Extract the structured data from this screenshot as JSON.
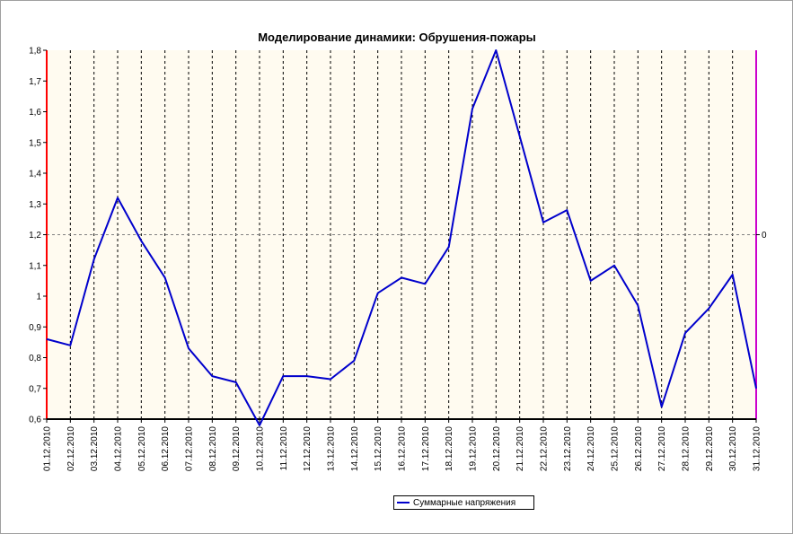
{
  "chart_data": {
    "type": "line",
    "title": "Моделирование динамики: Обрушения-пожары",
    "x": [
      "01.12.2010",
      "02.12.2010",
      "03.12.2010",
      "04.12.2010",
      "05.12.2010",
      "06.12.2010",
      "07.12.2010",
      "08.12.2010",
      "09.12.2010",
      "10.12.2010",
      "11.12.2010",
      "12.12.2010",
      "13.12.2010",
      "14.12.2010",
      "15.12.2010",
      "16.12.2010",
      "17.12.2010",
      "18.12.2010",
      "19.12.2010",
      "20.12.2010",
      "21.12.2010",
      "22.12.2010",
      "23.12.2010",
      "24.12.2010",
      "25.12.2010",
      "26.12.2010",
      "27.12.2010",
      "28.12.2010",
      "29.12.2010",
      "30.12.2010",
      "31.12.2010"
    ],
    "series": [
      {
        "name": "Суммарные напряжения",
        "color": "#0000cc",
        "values": [
          0.86,
          0.84,
          1.12,
          1.32,
          1.18,
          1.06,
          0.83,
          0.74,
          0.72,
          0.58,
          0.74,
          0.74,
          0.73,
          0.79,
          1.01,
          1.06,
          1.04,
          1.16,
          1.61,
          1.8,
          1.52,
          1.24,
          1.28,
          1.05,
          1.1,
          0.97,
          0.64,
          0.88,
          0.96,
          1.07,
          0.7
        ]
      }
    ],
    "ylim": [
      0.6,
      1.8
    ],
    "yticks": [
      "0,6",
      "0,7",
      "0,8",
      "0,9",
      "1",
      "1,1",
      "1,2",
      "1,3",
      "1,4",
      "1,5",
      "1,6",
      "1,7",
      "1,8"
    ],
    "right_axis_label": "0",
    "reference_line_y": 1.2,
    "grid": "vertical dashed",
    "legend_position": "bottom-center",
    "colors": {
      "plot_background": "#fffbf0",
      "left_axis": "#ff0000",
      "right_axis": "#cc00cc",
      "bottom_axis": "#000000"
    }
  }
}
